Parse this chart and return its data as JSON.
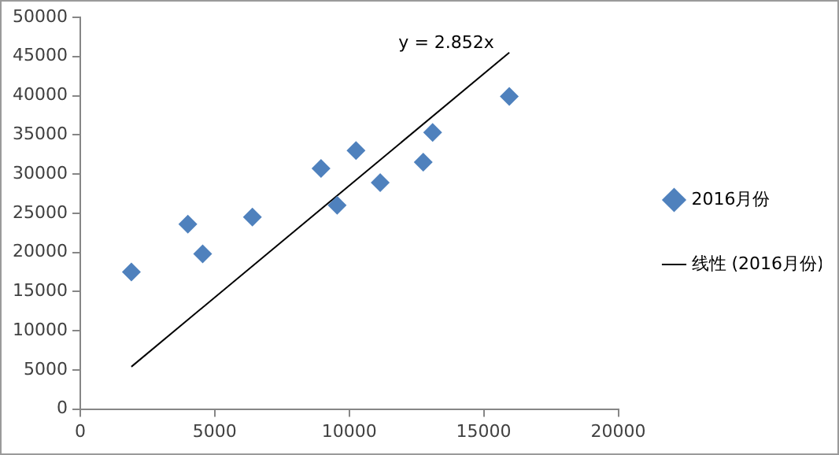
{
  "chart_data": {
    "type": "scatter",
    "legend": "right",
    "grid": false,
    "marker": "diamond",
    "xlim": [
      0,
      20000
    ],
    "xticks": [
      0,
      5000,
      10000,
      15000,
      20000
    ],
    "ylim": [
      0,
      50000
    ],
    "yticks": [
      0,
      5000,
      10000,
      15000,
      20000,
      25000,
      30000,
      35000,
      40000,
      45000,
      50000
    ],
    "annotations": [
      "y = 2.852x"
    ],
    "series": [
      {
        "name": "2016月份",
        "color": "#4f81bd",
        "x": [
          1900,
          4000,
          4550,
          6400,
          8950,
          9550,
          10250,
          11150,
          12750,
          13100,
          15950
        ],
        "values": [
          17500,
          23600,
          19800,
          24500,
          30700,
          26000,
          33000,
          28900,
          31500,
          35300,
          39900
        ]
      },
      {
        "name": "线性 (2016月份)",
        "type": "line",
        "line_style": "solid",
        "marker": "none",
        "color": "#000000",
        "x": [
          1900,
          15950
        ],
        "values": [
          5400,
          45500
        ]
      }
    ]
  }
}
